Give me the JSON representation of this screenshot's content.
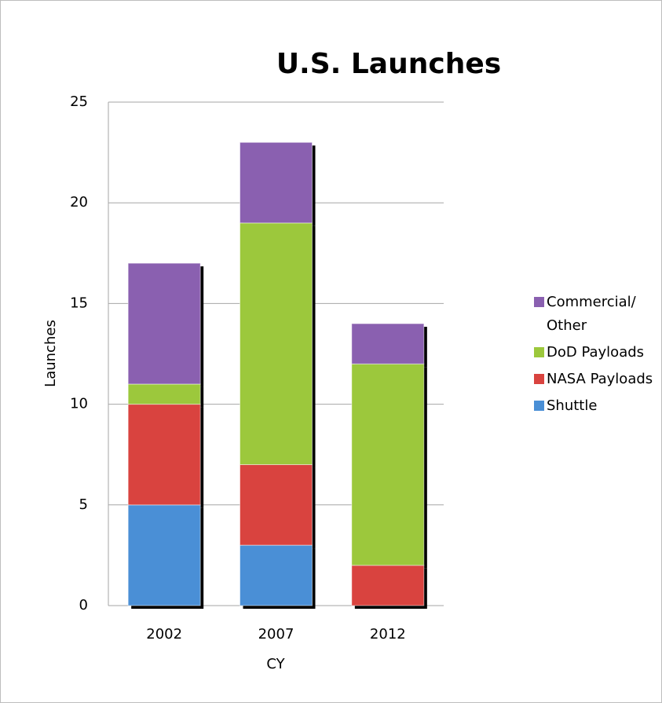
{
  "chart_data": {
    "type": "stacked_bar",
    "title": "U.S. Launches",
    "x_label": "CY",
    "y_label": "Launches",
    "categories": [
      "2002",
      "2007",
      "2012"
    ],
    "series": [
      {
        "name": "Shuttle",
        "color": "#4a8fd6",
        "values": [
          5,
          3,
          0
        ]
      },
      {
        "name": "NASA Payloads",
        "color": "#d9433f",
        "values": [
          5,
          4,
          2
        ]
      },
      {
        "name": "DoD Payloads",
        "color": "#9cc83c",
        "values": [
          1,
          12,
          10
        ]
      },
      {
        "name": "Commercial/ Other",
        "color": "#8a60b0",
        "values": [
          6,
          4,
          2
        ]
      }
    ],
    "ylim": [
      0,
      25
    ],
    "yticks": [
      0,
      5,
      10,
      15,
      20,
      25
    ],
    "grid": true,
    "legend": "right"
  }
}
